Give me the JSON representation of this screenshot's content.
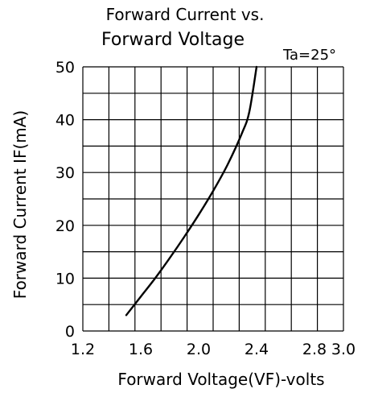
{
  "chart_data": {
    "type": "line",
    "title": "Forward Current vs.",
    "title_line2": "Forward Voltage",
    "annotation": "Ta=25°",
    "xlabel": "Forward Voltage(VF)-volts",
    "ylabel": "Forward Current IF(mA)",
    "xlim": [
      1.2,
      3.0
    ],
    "ylim": [
      0,
      50
    ],
    "x_ticks": [
      1.2,
      1.6,
      2.0,
      2.4,
      2.8,
      3.0
    ],
    "x_tick_labels": [
      "1.2",
      "1.6",
      "2.0",
      "2.4",
      "2.8",
      "3.0"
    ],
    "y_ticks": [
      0,
      10,
      20,
      30,
      40,
      50
    ],
    "y_tick_labels": [
      "0",
      "10",
      "20",
      "30",
      "40",
      "50"
    ],
    "grid": true,
    "series": [
      {
        "x": [
          1.5,
          1.6,
          1.7,
          1.8,
          1.9,
          2.0,
          2.1,
          2.2,
          2.3,
          2.35,
          2.4
        ],
        "y": [
          3,
          6.5,
          10,
          13.8,
          17.8,
          22,
          26.5,
          31.5,
          37.5,
          41.5,
          50
        ]
      }
    ],
    "line_color": "#000000"
  }
}
